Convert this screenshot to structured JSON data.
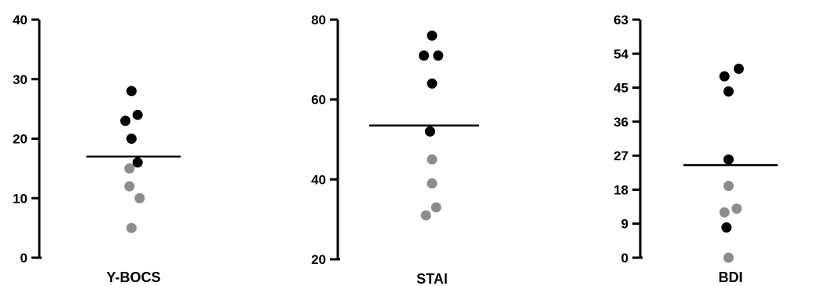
{
  "colors": {
    "axis": "#000000",
    "group_black": "#000000",
    "group_gray": "#8c8c8c",
    "mean_line": "#000000"
  },
  "chart_data": [
    {
      "type": "scatter",
      "category": "Y-BOCS",
      "xlabel": "Y-BOCS",
      "ylim": [
        0,
        40
      ],
      "yticks": [
        0,
        10,
        20,
        30,
        40
      ],
      "mean": 17,
      "series": [
        {
          "color": "black",
          "points": [
            {
              "x": -0.2,
              "y": 23
            },
            {
              "x": 0.1,
              "y": 24
            },
            {
              "x": -0.05,
              "y": 28
            },
            {
              "x": -0.05,
              "y": 20
            },
            {
              "x": 0.1,
              "y": 16
            }
          ]
        },
        {
          "color": "gray",
          "points": [
            {
              "x": -0.1,
              "y": 15
            },
            {
              "x": -0.1,
              "y": 12
            },
            {
              "x": 0.15,
              "y": 10
            },
            {
              "x": -0.05,
              "y": 5
            }
          ]
        }
      ]
    },
    {
      "type": "scatter",
      "category": "STAI",
      "xlabel": "STAI",
      "ylim": [
        20,
        80
      ],
      "yticks": [
        20,
        40,
        60,
        80
      ],
      "mean": 53.5,
      "series": [
        {
          "color": "black",
          "points": [
            {
              "x": 0.0,
              "y": 76
            },
            {
              "x": -0.2,
              "y": 71
            },
            {
              "x": 0.15,
              "y": 71
            },
            {
              "x": 0.0,
              "y": 64
            },
            {
              "x": -0.05,
              "y": 52
            }
          ]
        },
        {
          "color": "gray",
          "points": [
            {
              "x": 0.0,
              "y": 45
            },
            {
              "x": 0.0,
              "y": 39
            },
            {
              "x": 0.1,
              "y": 33
            },
            {
              "x": -0.15,
              "y": 31
            }
          ]
        }
      ]
    },
    {
      "type": "scatter",
      "category": "BDI",
      "xlabel": "BDI",
      "ylim": [
        0,
        63
      ],
      "yticks": [
        0,
        9,
        18,
        27,
        36,
        45,
        54,
        63
      ],
      "mean": 24.5,
      "series": [
        {
          "color": "black",
          "points": [
            {
              "x": -0.15,
              "y": 48
            },
            {
              "x": 0.2,
              "y": 50
            },
            {
              "x": -0.05,
              "y": 44
            },
            {
              "x": -0.05,
              "y": 26
            },
            {
              "x": -0.1,
              "y": 8
            }
          ]
        },
        {
          "color": "gray",
          "points": [
            {
              "x": -0.05,
              "y": 19
            },
            {
              "x": -0.15,
              "y": 12
            },
            {
              "x": 0.15,
              "y": 13
            },
            {
              "x": -0.05,
              "y": 0
            }
          ]
        }
      ]
    }
  ]
}
